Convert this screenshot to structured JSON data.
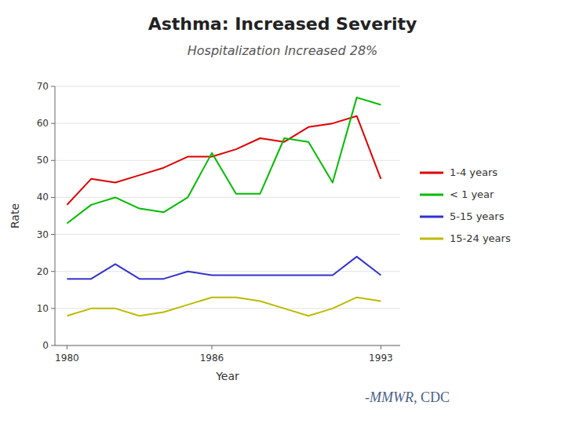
{
  "chart_data": {
    "type": "line",
    "title": "Asthma: Increased Severity",
    "subtitle": "Hospitalization Increased 28%",
    "x_label": "Year",
    "y_label": "Rate",
    "x": [
      1980,
      1981,
      1982,
      1983,
      1984,
      1985,
      1986,
      1987,
      1988,
      1989,
      1990,
      1991,
      1992,
      1993
    ],
    "series": [
      {
        "name": "1-4 years",
        "color": "#DD0000",
        "values": [
          38,
          45,
          44,
          46,
          48,
          51,
          51,
          53,
          56,
          55,
          59,
          60,
          62,
          45
        ]
      },
      {
        "name": "< 1 year",
        "color": "#00BB00",
        "values": [
          33,
          38,
          40,
          37,
          36,
          40,
          52,
          41,
          41,
          56,
          55,
          44,
          67,
          65
        ]
      },
      {
        "name": "5-15 years",
        "color": "#3333CC",
        "values": [
          18,
          18,
          22,
          18,
          18,
          20,
          19,
          19,
          19,
          19,
          19,
          19,
          24,
          19
        ]
      },
      {
        "name": "15-24 years",
        "color": "#BBBB00",
        "values": [
          8,
          10,
          10,
          8,
          9,
          11,
          13,
          13,
          12,
          10,
          8,
          10,
          13,
          12
        ]
      }
    ],
    "xlim": [
      1979.5,
      1993.8
    ],
    "xticks": [
      1980,
      1986,
      1993
    ],
    "ylim": [
      0,
      70
    ],
    "yticks": [
      0,
      10,
      20,
      30,
      40,
      50,
      60,
      70
    ],
    "grid": true,
    "legend": "right",
    "annotations": [
      "-MMWR",
      ", CDC"
    ]
  }
}
